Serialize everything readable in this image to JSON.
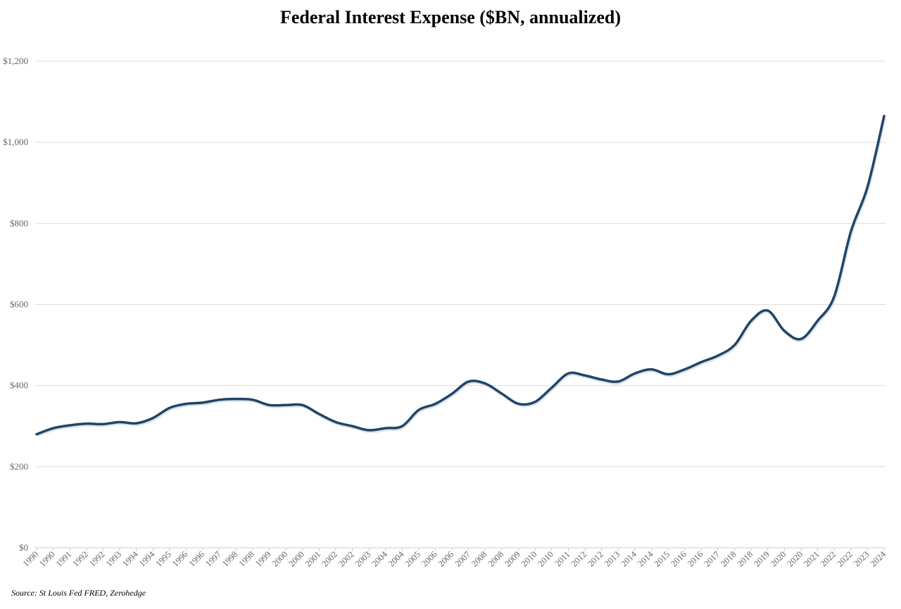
{
  "chart_data": {
    "type": "line",
    "title": "Federal Interest Expense ($BN, annualized)",
    "xlabel": "",
    "ylabel": "",
    "ylim": [
      0,
      1200
    ],
    "yticks": [
      0,
      200,
      400,
      600,
      800,
      1000,
      1200
    ],
    "ytick_labels": [
      "$0",
      "$200",
      "$400",
      "$600",
      "$800",
      "$1,000",
      "$1,200"
    ],
    "grid": true,
    "legend": "none",
    "categories": [
      "1990",
      "1990",
      "1991",
      "1992",
      "1992",
      "1993",
      "1994",
      "1994",
      "1995",
      "1996",
      "1996",
      "1997",
      "1998",
      "1998",
      "1999",
      "2000",
      "2000",
      "2001",
      "2002",
      "2002",
      "2003",
      "2004",
      "2004",
      "2005",
      "2006",
      "2006",
      "2007",
      "2008",
      "2008",
      "2009",
      "2010",
      "2010",
      "2011",
      "2012",
      "2012",
      "2013",
      "2014",
      "2014",
      "2015",
      "2016",
      "2016",
      "2017",
      "2018",
      "2018",
      "2019",
      "2020",
      "2020",
      "2021",
      "2022",
      "2022",
      "2023",
      "2024"
    ],
    "series": [
      {
        "name": "Federal Interest Expense",
        "color": "#1f4568",
        "values": [
          280,
          295,
          302,
          306,
          305,
          310,
          307,
          320,
          345,
          355,
          358,
          365,
          367,
          365,
          352,
          352,
          352,
          330,
          310,
          300,
          290,
          295,
          300,
          340,
          355,
          380,
          410,
          405,
          380,
          355,
          360,
          395,
          430,
          425,
          415,
          410,
          430,
          440,
          428,
          440,
          458,
          474,
          500,
          560,
          585,
          535,
          515,
          560,
          620,
          780,
          890,
          1065
        ]
      }
    ],
    "source": "Source: St Louis Fed FRED, Zerohedge"
  }
}
